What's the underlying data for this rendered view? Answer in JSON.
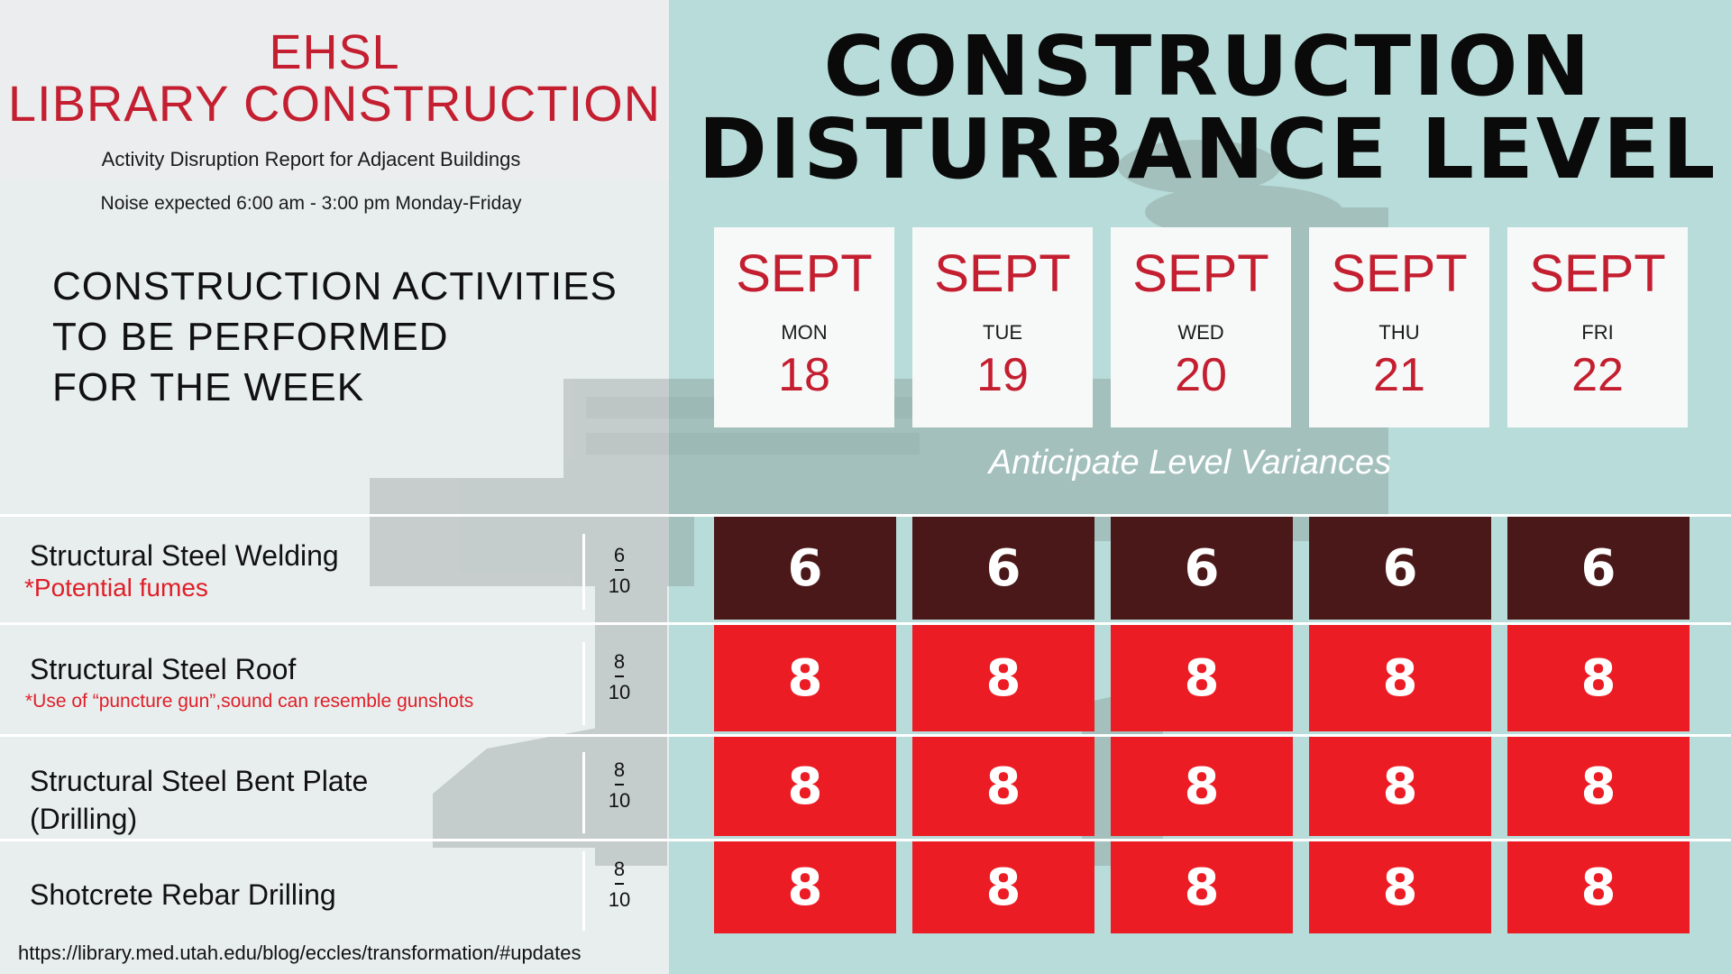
{
  "header": {
    "line1": "EHSL",
    "line2": "LIBRARY CONSTRUCTION",
    "subtitle": "Activity Disruption Report for Adjacent Buildings",
    "noise": "Noise expected 6:00 am - 3:00 pm Monday-Friday"
  },
  "activities_heading": [
    "CONSTRUCTION ACTIVITIES",
    "TO BE PERFORMED",
    "FOR THE WEEK"
  ],
  "main_title": [
    "CONSTRUCTION",
    "DISTURBANCE LEVEL"
  ],
  "days": [
    {
      "month": "SEPT",
      "dow": "MON",
      "date": "18"
    },
    {
      "month": "SEPT",
      "dow": "TUE",
      "date": "19"
    },
    {
      "month": "SEPT",
      "dow": "WED",
      "date": "20"
    },
    {
      "month": "SEPT",
      "dow": "THU",
      "date": "21"
    },
    {
      "month": "SEPT",
      "dow": "FRI",
      "date": "22"
    }
  ],
  "variance_note": "Anticipate Level Variances",
  "activities": [
    {
      "name": "Structural Steel Welding",
      "note": "*Potential fumes",
      "level": "6",
      "max": "10",
      "values": [
        "6",
        "6",
        "6",
        "6",
        "6"
      ]
    },
    {
      "name": "Structural Steel Roof",
      "note": "*Use of “puncture gun”,sound can resemble gunshots",
      "level": "8",
      "max": "10",
      "values": [
        "8",
        "8",
        "8",
        "8",
        "8"
      ]
    },
    {
      "name": "Structural Steel Bent Plate",
      "name2": "(Drilling)",
      "level": "8",
      "max": "10",
      "values": [
        "8",
        "8",
        "8",
        "8",
        "8"
      ]
    },
    {
      "name": "Shotcrete Rebar Drilling",
      "level": "8",
      "max": "10",
      "values": [
        "8",
        "8",
        "8",
        "8",
        "8"
      ]
    }
  ],
  "colors": {
    "accent_red": "#c41f30",
    "level_red": "#ec1c24",
    "level_dark": "#4a1818",
    "panel_teal": "#b8dcd9"
  },
  "footer_url": "https://library.med.utah.edu/blog/eccles/transformation/#updates"
}
